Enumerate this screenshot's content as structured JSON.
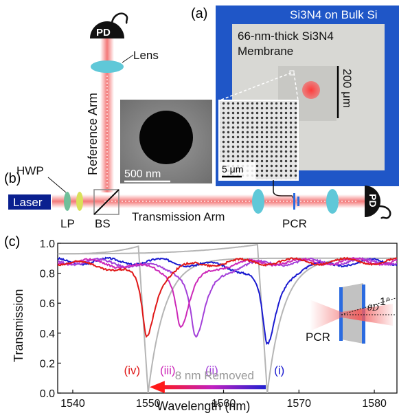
{
  "panel_labels": {
    "a": "(a)",
    "b": "(b)",
    "c": "(c)"
  },
  "setup": {
    "pd_top": "PD",
    "pd_right": "PD",
    "lens": "Lens",
    "reference_arm": "Reference Arm",
    "hwp": "HWP",
    "laser": "Laser",
    "lp": "LP",
    "bs": "BS",
    "transmission_arm": "Transmission Arm",
    "pcr": "PCR",
    "sem_scale": "500 nm"
  },
  "micrograph": {
    "title": "Si3N4 on Bulk Si",
    "membrane_line1": "66-nm-thick Si3N4",
    "membrane_line2": "Membrane",
    "scale_bar": "200 μm",
    "inset_scale": "5 μm"
  },
  "colors": {
    "background_blue": "#1f56c7",
    "beam": "#f26a6a",
    "laser_box": "#0a1f8f",
    "curve_i": "#1a1ad0",
    "curve_ii": "#a340d9",
    "curve_iii": "#cc28b8",
    "curve_iv": "#e01818",
    "sim": "#b5b5b5"
  },
  "chart_data": {
    "type": "line",
    "xlabel": "Wavelength (nm)",
    "ylabel": "Transmission",
    "xlim": [
      1538,
      1583
    ],
    "ylim": [
      0.0,
      1.0
    ],
    "xticks": [
      1540,
      1550,
      1560,
      1570,
      1580
    ],
    "yticks": [
      0.0,
      0.2,
      0.4,
      0.6,
      0.8,
      1.0
    ],
    "series": [
      {
        "name": "(i)",
        "center": 1565.8,
        "min": 0.33,
        "width": 1.4,
        "baseline": 0.88
      },
      {
        "name": "(ii)",
        "center": 1556.3,
        "min": 0.38,
        "width": 1.5,
        "baseline": 0.88
      },
      {
        "name": "(iii)",
        "center": 1554.3,
        "min": 0.44,
        "width": 1.4,
        "baseline": 0.88
      },
      {
        "name": "(iv)",
        "center": 1549.8,
        "min": 0.38,
        "width": 1.3,
        "baseline": 0.88
      }
    ],
    "annotations": {
      "arrow_text": "8 nm Removed",
      "pcr_label": "PCR",
      "angle_label": "1°",
      "theta_label": "θD"
    }
  }
}
